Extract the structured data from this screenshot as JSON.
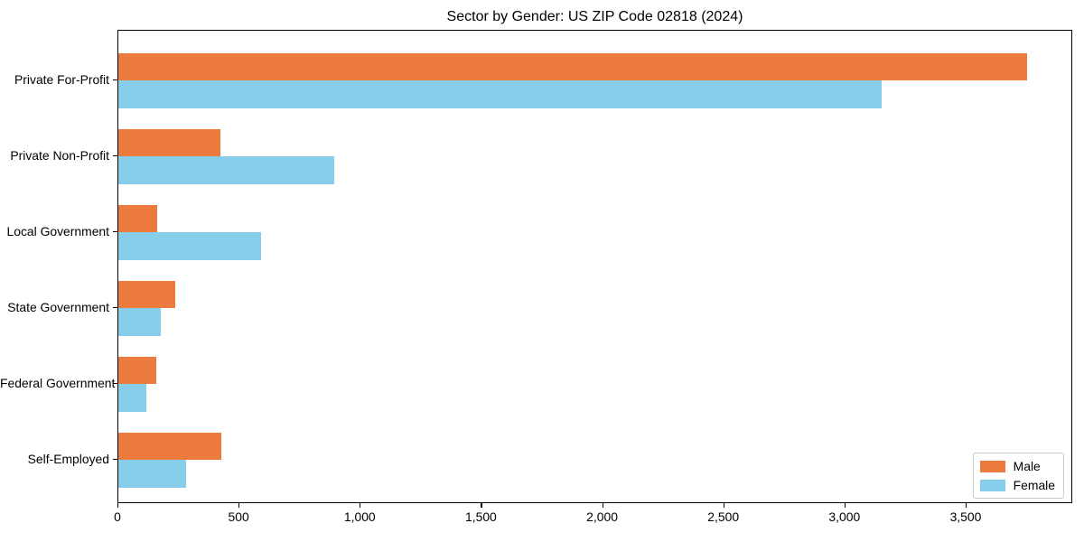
{
  "chart_data": {
    "type": "bar",
    "orientation": "horizontal",
    "title": "Sector by Gender: US ZIP Code 02818 (2024)",
    "categories": [
      "Private For-Profit",
      "Private Non-Profit",
      "Local Government",
      "State Government",
      "Federal Government",
      "Self-Employed"
    ],
    "series": [
      {
        "name": "Male",
        "color": "#ec7a3c",
        "values": [
          3750,
          420,
          160,
          235,
          155,
          425
        ]
      },
      {
        "name": "Female",
        "color": "#87ceeb",
        "values": [
          3150,
          890,
          590,
          175,
          115,
          280
        ]
      }
    ],
    "xlabel": "",
    "ylabel": "",
    "xlim": [
      0,
      3940
    ],
    "xticks": [
      0,
      500,
      1000,
      1500,
      2000,
      2500,
      3000,
      3500
    ],
    "xtick_labels": [
      "0",
      "500",
      "1,000",
      "1,500",
      "2,000",
      "2,500",
      "3,000",
      "3,500"
    ],
    "grid": false,
    "legend_position": "lower right"
  }
}
